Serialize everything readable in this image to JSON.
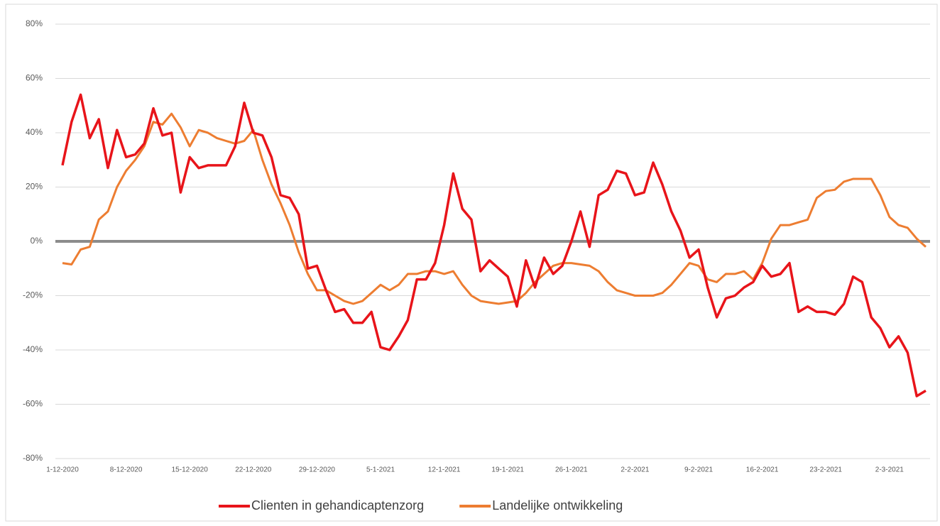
{
  "chart_data": {
    "type": "line",
    "categories": [
      "1-12-2020",
      null,
      null,
      null,
      null,
      null,
      null,
      "8-12-2020",
      null,
      null,
      null,
      null,
      null,
      null,
      "15-12-2020",
      null,
      null,
      null,
      null,
      null,
      null,
      "22-12-2020",
      null,
      null,
      null,
      null,
      null,
      null,
      "29-12-2020",
      null,
      null,
      null,
      null,
      null,
      null,
      "5-1-2021",
      null,
      null,
      null,
      null,
      null,
      null,
      "12-1-2021",
      null,
      null,
      null,
      null,
      null,
      null,
      "19-1-2021",
      null,
      null,
      null,
      null,
      null,
      null,
      "26-1-2021",
      null,
      null,
      null,
      null,
      null,
      null,
      "2-2-2021",
      null,
      null,
      null,
      null,
      null,
      null,
      "9-2-2021",
      null,
      null,
      null,
      null,
      null,
      null,
      "16-2-2021",
      null,
      null,
      null,
      null,
      null,
      null,
      "23-2-2021",
      null,
      null,
      null,
      null,
      null,
      null,
      "2-3-2021",
      null,
      null,
      null,
      null
    ],
    "series": [
      {
        "name": "Clienten in gehandicaptenzorg",
        "color": "#e8141a",
        "values": [
          28,
          44,
          54,
          38,
          45,
          27,
          41,
          31,
          32,
          36,
          49,
          39,
          40,
          18,
          31,
          27,
          28,
          28,
          28,
          35,
          51,
          40,
          39,
          31,
          17,
          16,
          10,
          -10,
          -9,
          -18,
          -26,
          -25,
          -30,
          -30,
          -26,
          -39,
          -40,
          -35,
          -29,
          -14,
          -14,
          -8,
          6,
          25,
          12,
          8,
          -11,
          -7,
          -10,
          -13,
          -24,
          -7,
          -17,
          -6,
          -12,
          -9,
          0,
          11,
          -2,
          17,
          19,
          26,
          25,
          17,
          18,
          29,
          21,
          11,
          4,
          -6,
          -3,
          -17,
          -28,
          -21,
          -20,
          -17,
          -15,
          -9,
          -13,
          -12,
          -8,
          -26,
          -24,
          -26,
          -26,
          -27,
          -23,
          -13,
          -15,
          -28,
          -32,
          -39,
          -35,
          -41,
          -57,
          -55
        ]
      },
      {
        "name": "Landelijke ontwikkeling",
        "color": "#ed7d31",
        "values": [
          -8,
          -8.5,
          -3,
          -2,
          8,
          11,
          20,
          26,
          30,
          35,
          44,
          43,
          47,
          42,
          35,
          41,
          40,
          38,
          37,
          36,
          37,
          41,
          30,
          21,
          14,
          6,
          -4,
          -12,
          -18,
          -18,
          -20,
          -22,
          -23,
          -22,
          -19,
          -16,
          -18,
          -16,
          -12,
          -12,
          -11,
          -11,
          -12,
          -11,
          -16,
          -20,
          -22,
          -22.5,
          -23,
          -22.5,
          -22,
          -19,
          -15,
          -12,
          -9,
          -8,
          -8,
          -8.5,
          -9,
          -11,
          -15,
          -18,
          -19,
          -20,
          -20,
          -20,
          -19,
          -16,
          -12,
          -8,
          -9,
          -14,
          -15,
          -12,
          -12,
          -11,
          -14,
          -8,
          1,
          6,
          6,
          7,
          8,
          16,
          18.5,
          19,
          22,
          23,
          23,
          23,
          17,
          9,
          6,
          5,
          1,
          -2
        ]
      }
    ],
    "ylim": [
      -80,
      80
    ],
    "yticks": [
      {
        "value": -80,
        "label": "-80%"
      },
      {
        "value": -60,
        "label": "-60%"
      },
      {
        "value": -40,
        "label": "-40%"
      },
      {
        "value": -20,
        "label": "-20%"
      },
      {
        "value": 0,
        "label": "0%"
      },
      {
        "value": 20,
        "label": "20%"
      },
      {
        "value": 40,
        "label": "40%"
      },
      {
        "value": 60,
        "label": "60%"
      },
      {
        "value": 80,
        "label": "80%"
      }
    ],
    "grid": true,
    "legend": "bottom"
  }
}
